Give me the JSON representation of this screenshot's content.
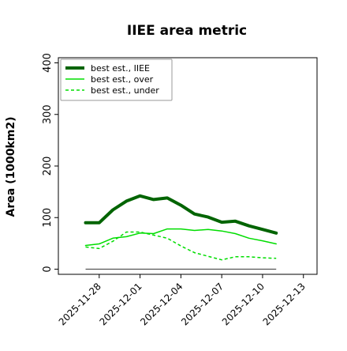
{
  "chart_data": {
    "type": "line",
    "title": "IIEE area metric",
    "ylabel": "Area (1000km2)",
    "xlabel": "",
    "ylim": [
      -10,
      410
    ],
    "yticks": [
      0,
      100,
      200,
      300,
      400
    ],
    "xlim": [
      "2025-11-25",
      "2025-12-14"
    ],
    "xticks": [
      "2025-11-28",
      "2025-12-01",
      "2025-12-04",
      "2025-12-07",
      "2025-12-10",
      "2025-12-13"
    ],
    "grid": false,
    "legend_position": "top-left",
    "x": [
      "2025-11-27",
      "2025-11-28",
      "2025-11-29",
      "2025-11-30",
      "2025-12-01",
      "2025-12-02",
      "2025-12-03",
      "2025-12-04",
      "2025-12-05",
      "2025-12-06",
      "2025-12-07",
      "2025-12-08",
      "2025-12-09",
      "2025-12-10",
      "2025-12-11"
    ],
    "series": [
      {
        "name": "best est., IIEE",
        "color": "#006400",
        "style": "solid",
        "width": "thick",
        "values": [
          90,
          90,
          115,
          132,
          142,
          135,
          138,
          124,
          107,
          101,
          91,
          93,
          84,
          77,
          70
        ]
      },
      {
        "name": "best est., over",
        "color": "#00dd00",
        "style": "solid",
        "width": "thin",
        "values": [
          46,
          49,
          60,
          63,
          70,
          69,
          78,
          78,
          75,
          77,
          74,
          69,
          60,
          55,
          49
        ]
      },
      {
        "name": "best est., under",
        "color": "#00dd00",
        "style": "dashed",
        "width": "thin",
        "values": [
          43,
          40,
          54,
          72,
          72,
          66,
          60,
          45,
          32,
          25,
          18,
          24,
          24,
          22,
          21
        ]
      }
    ],
    "baseline": {
      "value": 0,
      "color": "#555555",
      "from": "2025-11-27",
      "to": "2025-12-11"
    }
  }
}
